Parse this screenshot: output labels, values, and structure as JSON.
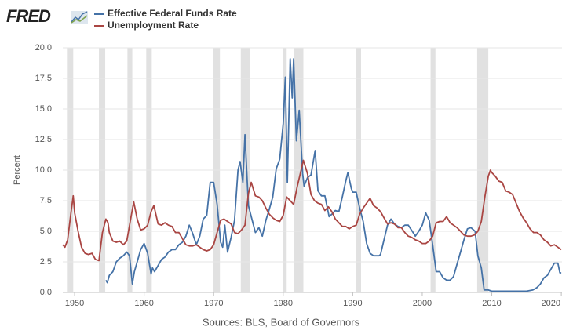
{
  "logo": "FRED",
  "chart_data": {
    "type": "line",
    "y_label": "Percent",
    "source": "Sources: BLS, Board of Governors",
    "xlim": [
      1948.3,
      2020.1
    ],
    "xticks": [
      1950,
      1960,
      1970,
      1980,
      1990,
      2000,
      2010,
      2020
    ],
    "ylim": [
      0,
      20
    ],
    "yticks": [
      {
        "value": 0,
        "label": "0.0"
      },
      2.5,
      {
        "value": 5,
        "label": "5.0"
      },
      7.5,
      {
        "value": 10,
        "label": "10.0"
      },
      12.5,
      {
        "value": 15,
        "label": "15.0"
      },
      17.5,
      {
        "value": 20,
        "label": "20.0"
      }
    ],
    "grid": true,
    "recession_color": "#e1e1e1",
    "recessions": [
      [
        1948.9,
        1949.8
      ],
      [
        1953.5,
        1954.4
      ],
      [
        1957.6,
        1958.3
      ],
      [
        1960.3,
        1961.1
      ],
      [
        1969.9,
        1970.9
      ],
      [
        1973.9,
        1975.2
      ],
      [
        1980.0,
        1980.5
      ],
      [
        1981.5,
        1982.9
      ],
      [
        1990.5,
        1991.2
      ],
      [
        2001.2,
        2001.9
      ],
      [
        2007.9,
        2009.5
      ]
    ],
    "series": [
      {
        "name": "Effective Federal Funds Rate",
        "color": "#4572a7",
        "x": [
          1954.5,
          1954.7,
          1955.0,
          1955.5,
          1956.0,
          1956.5,
          1957.0,
          1957.5,
          1957.9,
          1958.3,
          1958.6,
          1959.0,
          1959.5,
          1960.0,
          1960.5,
          1961.0,
          1961.2,
          1961.5,
          1962.0,
          1962.5,
          1963.0,
          1963.5,
          1964.0,
          1964.5,
          1965.0,
          1965.5,
          1966.0,
          1966.5,
          1967.0,
          1967.5,
          1968.0,
          1968.5,
          1969.0,
          1969.5,
          1970.0,
          1970.5,
          1971.0,
          1971.3,
          1971.6,
          1972.0,
          1972.5,
          1973.0,
          1973.5,
          1973.8,
          1974.2,
          1974.5,
          1975.0,
          1975.5,
          1976.0,
          1976.5,
          1977.0,
          1977.5,
          1978.0,
          1978.5,
          1979.0,
          1979.5,
          1980.0,
          1980.3,
          1980.6,
          1981.0,
          1981.3,
          1981.5,
          1981.9,
          1982.3,
          1982.8,
          1983.0,
          1983.5,
          1984.0,
          1984.6,
          1985.0,
          1985.5,
          1986.0,
          1986.6,
          1987.0,
          1987.5,
          1988.0,
          1988.5,
          1989.0,
          1989.3,
          1989.8,
          1990.0,
          1990.5,
          1991.0,
          1991.5,
          1992.0,
          1992.5,
          1993.0,
          1993.8,
          1994.0,
          1994.5,
          1995.0,
          1995.5,
          1996.0,
          1996.5,
          1997.0,
          1997.5,
          1998.0,
          1998.8,
          1999.0,
          1999.5,
          2000.0,
          2000.5,
          2001.0,
          2001.5,
          2002.0,
          2002.5,
          2003.0,
          2003.5,
          2004.0,
          2004.5,
          2005.0,
          2005.5,
          2006.0,
          2006.5,
          2007.0,
          2007.6,
          2008.0,
          2008.5,
          2008.9,
          2009.5,
          2010.0,
          2011.0,
          2012.0,
          2013.0,
          2014.0,
          2015.0,
          2015.9,
          2016.5,
          2017.0,
          2017.5,
          2018.0,
          2018.5,
          2019.0,
          2019.5,
          2019.8,
          2020.0
        ],
        "values": [
          1.0,
          0.8,
          1.4,
          1.7,
          2.5,
          2.8,
          3.0,
          3.3,
          3.0,
          0.7,
          1.7,
          2.5,
          3.5,
          4.0,
          3.2,
          1.5,
          2.0,
          1.7,
          2.2,
          2.7,
          2.9,
          3.3,
          3.5,
          3.5,
          3.9,
          4.1,
          4.6,
          5.5,
          4.8,
          3.9,
          4.6,
          6.0,
          6.3,
          9.0,
          9.0,
          7.2,
          4.1,
          3.7,
          5.5,
          3.3,
          4.5,
          5.9,
          10.0,
          10.7,
          9.0,
          12.9,
          7.1,
          6.0,
          4.9,
          5.3,
          4.6,
          5.9,
          6.8,
          7.8,
          10.1,
          10.9,
          13.8,
          17.6,
          9.0,
          19.1,
          15.9,
          19.1,
          12.4,
          14.9,
          9.7,
          8.7,
          9.4,
          9.6,
          11.6,
          8.3,
          7.9,
          7.9,
          6.2,
          6.4,
          6.7,
          6.6,
          7.8,
          9.1,
          9.8,
          8.5,
          8.2,
          8.2,
          6.9,
          5.8,
          4.0,
          3.2,
          3.0,
          3.0,
          3.1,
          4.3,
          5.5,
          6.0,
          5.6,
          5.4,
          5.3,
          5.5,
          5.5,
          4.8,
          4.6,
          5.0,
          5.5,
          6.5,
          5.9,
          3.9,
          1.7,
          1.7,
          1.2,
          1.0,
          1.0,
          1.3,
          2.3,
          3.3,
          4.3,
          5.2,
          5.3,
          5.0,
          3.0,
          2.0,
          0.2,
          0.2,
          0.1,
          0.1,
          0.1,
          0.1,
          0.1,
          0.1,
          0.2,
          0.4,
          0.7,
          1.2,
          1.4,
          1.9,
          2.4,
          2.4,
          1.6,
          1.6
        ]
      },
      {
        "name": "Unemployment Rate",
        "color": "#aa4643",
        "x": [
          1948.3,
          1948.6,
          1949.0,
          1949.5,
          1949.8,
          1950.0,
          1950.5,
          1951.0,
          1951.5,
          1952.0,
          1952.5,
          1953.0,
          1953.5,
          1954.0,
          1954.5,
          1954.8,
          1955.0,
          1955.5,
          1956.0,
          1956.5,
          1957.0,
          1957.5,
          1958.0,
          1958.5,
          1959.0,
          1959.5,
          1960.0,
          1960.5,
          1961.0,
          1961.4,
          1962.0,
          1962.5,
          1963.0,
          1963.5,
          1964.0,
          1964.5,
          1965.0,
          1965.5,
          1966.0,
          1966.5,
          1967.0,
          1967.5,
          1968.0,
          1968.5,
          1969.0,
          1969.5,
          1970.0,
          1970.5,
          1971.0,
          1971.5,
          1972.0,
          1972.5,
          1973.0,
          1973.5,
          1974.0,
          1974.5,
          1975.0,
          1975.4,
          1976.0,
          1976.5,
          1977.0,
          1977.5,
          1978.0,
          1978.5,
          1979.0,
          1979.5,
          1980.0,
          1980.5,
          1981.0,
          1981.5,
          1982.0,
          1982.5,
          1982.9,
          1983.5,
          1984.0,
          1984.5,
          1985.0,
          1985.5,
          1986.0,
          1986.5,
          1987.0,
          1987.5,
          1988.0,
          1988.5,
          1989.0,
          1989.5,
          1990.0,
          1990.5,
          1991.0,
          1991.5,
          1992.0,
          1992.5,
          1993.0,
          1993.5,
          1994.0,
          1994.5,
          1995.0,
          1995.5,
          1996.0,
          1996.5,
          1997.0,
          1997.5,
          1998.0,
          1998.5,
          1999.0,
          1999.5,
          2000.0,
          2000.5,
          2001.0,
          2001.5,
          2002.0,
          2002.5,
          2003.0,
          2003.5,
          2004.0,
          2004.5,
          2005.0,
          2005.5,
          2006.0,
          2006.5,
          2007.0,
          2007.5,
          2008.0,
          2008.5,
          2009.0,
          2009.5,
          2009.8,
          2010.0,
          2010.5,
          2011.0,
          2011.5,
          2012.0,
          2012.5,
          2013.0,
          2013.5,
          2014.0,
          2014.5,
          2015.0,
          2015.5,
          2016.0,
          2016.5,
          2017.0,
          2017.5,
          2018.0,
          2018.5,
          2019.0,
          2019.5,
          2020.0
        ],
        "values": [
          3.9,
          3.7,
          4.3,
          6.6,
          7.9,
          6.5,
          5.0,
          3.7,
          3.2,
          3.1,
          3.2,
          2.7,
          2.6,
          4.9,
          6.0,
          5.7,
          4.9,
          4.2,
          4.1,
          4.2,
          3.9,
          4.2,
          5.8,
          7.4,
          6.0,
          5.1,
          5.2,
          5.5,
          6.6,
          7.1,
          5.6,
          5.5,
          5.7,
          5.5,
          5.4,
          4.9,
          4.9,
          4.4,
          3.9,
          3.8,
          3.8,
          3.9,
          3.7,
          3.5,
          3.4,
          3.5,
          3.9,
          4.9,
          5.9,
          6.0,
          5.8,
          5.6,
          4.9,
          4.8,
          5.1,
          5.5,
          8.1,
          9.0,
          7.9,
          7.8,
          7.5,
          6.9,
          6.4,
          6.1,
          5.9,
          5.8,
          6.3,
          7.8,
          7.5,
          7.2,
          8.6,
          9.8,
          10.8,
          9.7,
          8.0,
          7.5,
          7.3,
          7.2,
          6.7,
          7.0,
          6.6,
          6.0,
          5.7,
          5.4,
          5.4,
          5.2,
          5.4,
          5.5,
          6.4,
          6.9,
          7.3,
          7.7,
          7.1,
          6.9,
          6.6,
          6.1,
          5.6,
          5.7,
          5.6,
          5.3,
          5.3,
          4.9,
          4.6,
          4.5,
          4.3,
          4.2,
          4.0,
          4.0,
          4.2,
          4.6,
          5.7,
          5.8,
          5.8,
          6.2,
          5.7,
          5.5,
          5.3,
          5.0,
          4.7,
          4.6,
          4.6,
          4.7,
          5.0,
          5.8,
          7.8,
          9.5,
          10.0,
          9.8,
          9.5,
          9.1,
          9.0,
          8.3,
          8.2,
          8.0,
          7.3,
          6.6,
          6.1,
          5.7,
          5.2,
          4.9,
          4.9,
          4.7,
          4.3,
          4.1,
          3.8,
          3.9,
          3.7,
          3.5
        ]
      }
    ]
  }
}
